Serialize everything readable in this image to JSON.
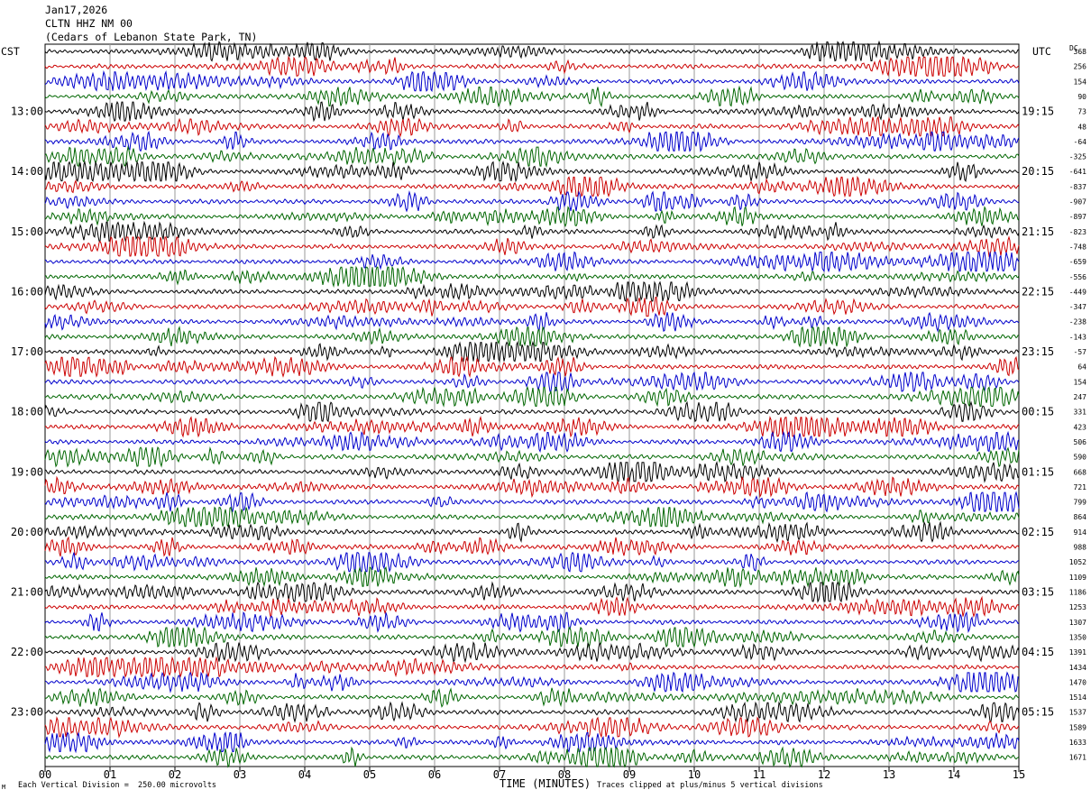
{
  "header": {
    "date": "Jan17,2026",
    "station": "CLTN HHZ NM 00",
    "location": "(Cedars of Lebanon State Park, TN)"
  },
  "left_tz": "CST",
  "right_tz": "UTC",
  "dc_label": "DC",
  "footer": {
    "scale_note": "Each Vertical Division =  250.00 microvolts",
    "clip_note": "Traces clipped at plus/minus 5 vertical divisions",
    "corner_mark": "M"
  },
  "colors": {
    "traces": [
      "#000000",
      "#cc0000",
      "#0000cc",
      "#006600"
    ],
    "grid": "#9a9a9a"
  },
  "chart_data": {
    "type": "line",
    "title": "CLTN HHZ NM 00",
    "xlabel": "TIME (MINUTES)",
    "ylabel": "",
    "x_ticks": [
      "00",
      "01",
      "02",
      "03",
      "04",
      "05",
      "06",
      "07",
      "08",
      "09",
      "10",
      "11",
      "12",
      "13",
      "14",
      "15"
    ],
    "xlim": [
      0,
      15
    ],
    "trace_count": 48,
    "trace_minutes": 15,
    "left_hour_labels": [
      "13:00",
      "14:00",
      "15:00",
      "16:00",
      "17:00",
      "18:00",
      "19:00",
      "20:00",
      "21:00",
      "22:00",
      "23:00"
    ],
    "right_hour_labels": [
      "19:15",
      "20:15",
      "21:15",
      "22:15",
      "23:15",
      "00:15",
      "01:15",
      "02:15",
      "03:15",
      "04:15",
      "05:15"
    ],
    "dc_offsets": [
      "368",
      "256",
      "154",
      "90",
      "73",
      "48",
      "-64",
      "-325",
      "-641",
      "-837",
      "-907",
      "-897",
      "-823",
      "-748",
      "-659",
      "-556",
      "-449",
      "-347",
      "-238",
      "-143",
      "-57",
      "64",
      "154",
      "247",
      "331",
      "423",
      "506",
      "590",
      "668",
      "721",
      "799",
      "864",
      "914",
      "988",
      "1052",
      "1109",
      "1186",
      "1253",
      "1307",
      "1350",
      "1391",
      "1434",
      "1470",
      "1514",
      "1537",
      "1589",
      "1633",
      "1671"
    ]
  }
}
